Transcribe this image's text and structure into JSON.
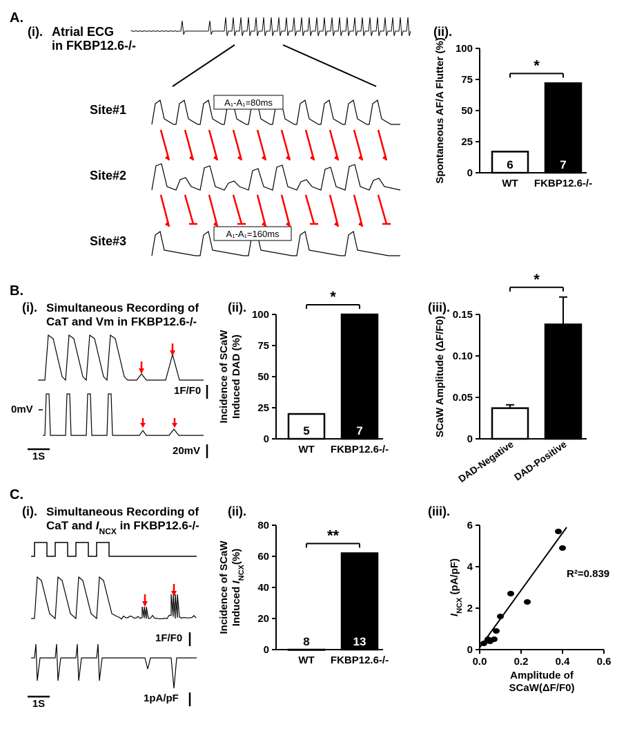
{
  "panelA": {
    "letter": "A.",
    "subi": {
      "label": "(i).",
      "title_line1": "Atrial ECG",
      "title_line2": "in FKBP12.6-/-"
    },
    "sites": {
      "site1": "Site#1",
      "site2": "Site#2",
      "site3": "Site#3",
      "box1": "A₁-A₁=80ms",
      "box2": "A₁-A₁=160ms"
    },
    "subii": {
      "label": "(ii).",
      "ylabel": "Spontaneous AF/A Flutter (%)",
      "ylim": [
        0,
        100
      ],
      "yticks": [
        0,
        25,
        50,
        75,
        100
      ],
      "cats": [
        "WT",
        "FKBP12.6-/-"
      ],
      "vals": [
        17,
        72
      ],
      "nlabels": [
        "6",
        "7"
      ],
      "bar_colors": [
        "#ffffff",
        "#000000"
      ],
      "sig": "*"
    }
  },
  "panelB": {
    "letter": "B.",
    "subi": {
      "label": "(i).",
      "title_line1": "Simultaneous Recording of",
      "title_line2": "CaT and Vm in FKBP12.6-/-",
      "xscale": "1S",
      "yscale_top": "1F/F0",
      "yscale_bot": "20mV",
      "zero": "0mV"
    },
    "subii": {
      "label": "(ii).",
      "ylabel": "Incidence of SCaW\nInduced DAD (%)",
      "ylim": [
        0,
        100
      ],
      "yticks": [
        0,
        25,
        50,
        75,
        100
      ],
      "cats": [
        "WT",
        "FKBP12.6-/-"
      ],
      "vals": [
        20,
        100
      ],
      "nlabels": [
        "5",
        "7"
      ],
      "bar_colors": [
        "#ffffff",
        "#000000"
      ],
      "sig": "*"
    },
    "subiii": {
      "label": "(iii).",
      "ylabel": "SCaW Amplitude (ΔF/F0)",
      "ylim": [
        0,
        0.15
      ],
      "yticks": [
        0.0,
        0.05,
        0.1,
        0.15
      ],
      "cats": [
        "DAD-Negative",
        "DAD-Positive"
      ],
      "vals": [
        0.037,
        0.138
      ],
      "errs": [
        0.004,
        0.033
      ],
      "bar_colors": [
        "#ffffff",
        "#000000"
      ],
      "sig": "*"
    }
  },
  "panelC": {
    "letter": "C.",
    "subi": {
      "label": "(i).",
      "title_line1": "Simultaneous Recording of",
      "title_line2_a": "CaT and ",
      "title_line2_b": "I",
      "title_line2_c": "NCX",
      "title_line2_d": " in FKBP12.6-/-",
      "xscale": "1S",
      "yscale_top": "1F/F0",
      "yscale_bot": "1pA/pF"
    },
    "subii": {
      "label": "(ii).",
      "ylabel_l1": "Incidence of SCaW",
      "ylabel_l2a": "Induced ",
      "ylabel_l2b": "I",
      "ylabel_l2c": "NCX",
      "ylabel_l2d": "(%)",
      "ylim": [
        0,
        80
      ],
      "yticks": [
        0,
        20,
        40,
        60,
        80
      ],
      "cats": [
        "WT",
        "FKBP12.6-/-"
      ],
      "vals": [
        0,
        62
      ],
      "nlabels": [
        "8",
        "13"
      ],
      "bar_colors": [
        "#ffffff",
        "#000000"
      ],
      "sig": "**"
    },
    "subiii": {
      "label": "(iii).",
      "xlabel_l1": "Amplitude of",
      "xlabel_l2": "SCaW(ΔF/F0)",
      "ylabel_a": "I",
      "ylabel_b": "NCX",
      "ylabel_c": " (pA/pF)",
      "xlim": [
        0.0,
        0.6
      ],
      "xticks": [
        0.0,
        0.2,
        0.4,
        0.6
      ],
      "ylim": [
        0,
        6
      ],
      "yticks": [
        0,
        2,
        4,
        6
      ],
      "points": [
        [
          0.02,
          0.3
        ],
        [
          0.04,
          0.5
        ],
        [
          0.05,
          0.4
        ],
        [
          0.07,
          0.5
        ],
        [
          0.08,
          0.9
        ],
        [
          0.1,
          1.6
        ],
        [
          0.15,
          2.7
        ],
        [
          0.23,
          2.3
        ],
        [
          0.38,
          5.7
        ],
        [
          0.4,
          4.9
        ]
      ],
      "r2": "R²=0.839",
      "fit_start": [
        0.0,
        0.1
      ],
      "fit_end": [
        0.42,
        5.9
      ]
    }
  },
  "colors": {
    "black": "#000000",
    "white": "#ffffff",
    "red": "#ff0000"
  }
}
